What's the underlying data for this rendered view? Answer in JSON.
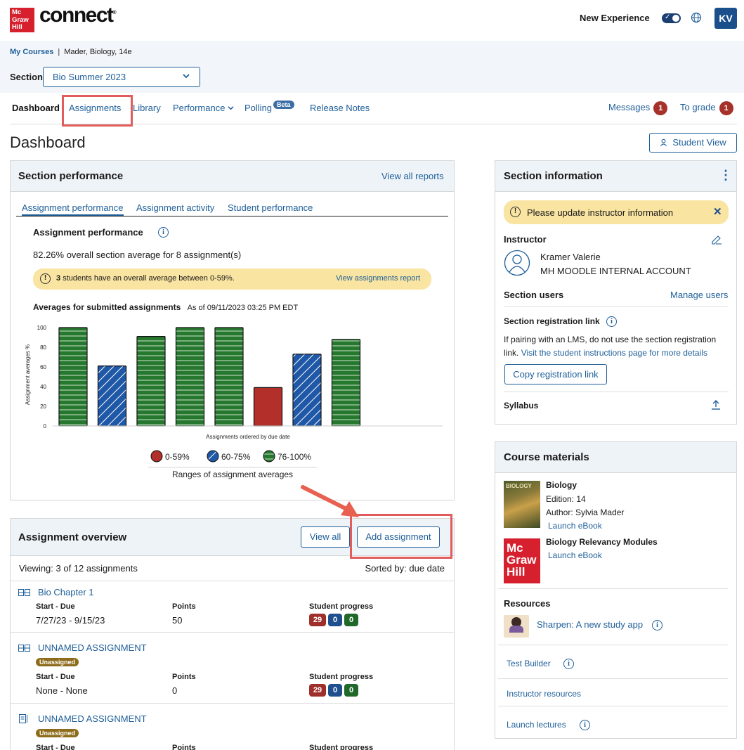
{
  "header": {
    "logo_lines": [
      "Mc",
      "Graw",
      "Hill"
    ],
    "brand": "connect",
    "new_experience": "New Experience",
    "avatar": "KV"
  },
  "breadcrumb": {
    "my_courses": "My Courses",
    "course": "Mader, Biology, 14e"
  },
  "section": {
    "label": "Section",
    "value": "Bio Summer 2023"
  },
  "nav": {
    "dashboard": "Dashboard",
    "assignments": "Assignments",
    "library": "Library",
    "performance": "Performance",
    "polling": "Polling",
    "beta": "Beta",
    "release_notes": "Release Notes",
    "messages": "Messages",
    "messages_count": "1",
    "to_grade": "To grade",
    "to_grade_count": "1"
  },
  "page": {
    "title": "Dashboard",
    "student_view": "Student View"
  },
  "section_performance": {
    "title": "Section performance",
    "view_all_reports": "View all reports",
    "tabs": [
      "Assignment performance",
      "Assignment activity",
      "Student performance"
    ],
    "heading": "Assignment performance",
    "average_text": "82.26% overall section average for 8 assignment(s)",
    "warning_count": "3",
    "warning_text": "students have an overall average between 0-59%.",
    "warning_link": "View assignments report",
    "averages_title": "Averages for submitted assignments",
    "as_of": "As of 09/11/2023 03:25 PM EDT"
  },
  "chart_data": {
    "type": "bar",
    "title": "Averages for submitted assignments",
    "xlabel": "Assignments ordered by due date",
    "ylabel": "Assignment averages %",
    "ylim": [
      0,
      100
    ],
    "yticks": [
      0,
      20,
      40,
      60,
      80,
      100
    ],
    "values": [
      100,
      61,
      91,
      100,
      100,
      39,
      73,
      88
    ],
    "legend_title": "Ranges of assignment averages",
    "legend": [
      {
        "label": "0-59%",
        "color": "#b3302a",
        "pattern": "solid"
      },
      {
        "label": "60-75%",
        "color": "#1f58a6",
        "pattern": "diagonal"
      },
      {
        "label": "76-100%",
        "color": "#27782f",
        "pattern": "horizontal"
      }
    ],
    "grid": false
  },
  "overview": {
    "title": "Assignment overview",
    "view_all": "View all",
    "add_assignment": "Add assignment",
    "viewing": "Viewing: 3 of 12 assignments",
    "sorted": "Sorted by: due date",
    "col_start": "Start - Due",
    "col_points": "Points",
    "col_progress": "Student progress",
    "unassigned": "Unassigned",
    "rows": [
      {
        "name": "Bio Chapter 1",
        "dates": "7/27/23 - 9/15/23",
        "points": "50",
        "p1": "29",
        "p2": "0",
        "p3": "0"
      },
      {
        "name": "UNNAMED ASSIGNMENT",
        "dates": "None - None",
        "points": "0",
        "p1": "29",
        "p2": "0",
        "p3": "0"
      },
      {
        "name": "UNNAMED ASSIGNMENT"
      }
    ]
  },
  "section_info": {
    "title": "Section information",
    "alert": "Please update instructor information",
    "instructor_label": "Instructor",
    "instructor_name": "Kramer Valerie",
    "instructor_account": "MH MOODLE INTERNAL ACCOUNT",
    "users_label": "Section users",
    "manage_users": "Manage users",
    "reg_label": "Section registration link",
    "reg_text": "If pairing with an LMS, do not use the section registration link.",
    "reg_link": "Visit the student instructions page for more details",
    "copy_link": "Copy registration link",
    "syllabus": "Syllabus"
  },
  "materials": {
    "title": "Course materials",
    "book1_title": "Biology",
    "book1_edition": "Edition: 14",
    "book1_author": "Author: Sylvia Mader",
    "launch_ebook": "Launch eBook",
    "book2_title": "Biology Relevancy Modules",
    "resources": "Resources",
    "sharpen": "Sharpen: A new study app",
    "test_builder": "Test Builder",
    "instructor_resources": "Instructor resources",
    "launch_lectures": "Launch lectures"
  },
  "colors": {
    "accent": "#1f5f99",
    "alert": "#f9e4a1",
    "highlight": "#e15c5c"
  }
}
